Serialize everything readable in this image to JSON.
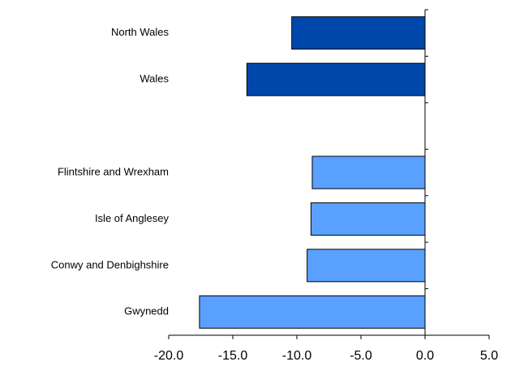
{
  "chart_data": {
    "type": "barh",
    "categories": [
      "North Wales",
      "Wales",
      null,
      "Flintshire and Wrexham",
      "Isle of Anglesey",
      "Conwy and Denbighshire",
      "Gwynedd"
    ],
    "values": [
      -10.4,
      -13.9,
      null,
      -8.8,
      -8.9,
      -9.2,
      -17.6
    ],
    "colors": [
      "#0047ab",
      "#0047ab",
      null,
      "#5aa0ff",
      "#5aa0ff",
      "#5aa0ff",
      "#5aa0ff"
    ],
    "xlim": [
      -20,
      5
    ],
    "xticks": [
      {
        "value": -20,
        "label": "-20.0"
      },
      {
        "value": -15,
        "label": "-15.0"
      },
      {
        "value": -10,
        "label": "-10.0"
      },
      {
        "value": -5,
        "label": "-5.0"
      },
      {
        "value": 0,
        "label": "0.0"
      },
      {
        "value": 5,
        "label": "5.0"
      }
    ]
  }
}
